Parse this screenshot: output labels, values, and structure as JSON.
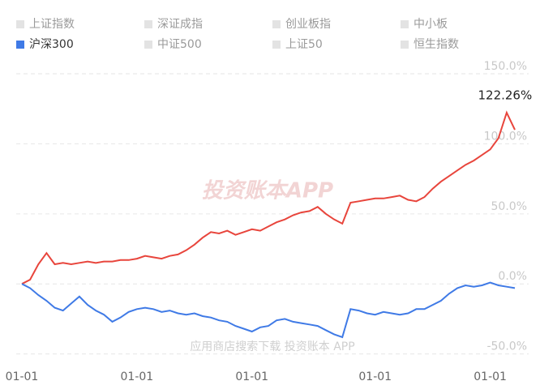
{
  "chart_data": {
    "type": "line",
    "legend": [
      {
        "name": "上证指数",
        "color": "#e3e3e3"
      },
      {
        "name": "深证成指",
        "color": "#e3e3e3"
      },
      {
        "name": "创业板指",
        "color": "#e3e3e3"
      },
      {
        "name": "中小板",
        "color": "#e3e3e3"
      },
      {
        "name": "沪深300",
        "color": "#3f7ae6"
      },
      {
        "name": "中证500",
        "color": "#e3e3e3"
      },
      {
        "name": "上证50",
        "color": "#e3e3e3"
      },
      {
        "name": "恒生指数",
        "color": "#e3e3e3"
      }
    ],
    "categories": [
      "01-01",
      null,
      null,
      null,
      null,
      null,
      null,
      null,
      null,
      null,
      null,
      null,
      null,
      null,
      "01-01",
      null,
      null,
      null,
      null,
      null,
      null,
      null,
      null,
      null,
      null,
      null,
      null,
      null,
      "01-01",
      null,
      null,
      null,
      null,
      null,
      null,
      null,
      null,
      null,
      null,
      null,
      null,
      null,
      null,
      "01-01",
      null,
      null,
      null,
      null,
      null,
      null,
      null,
      null,
      null,
      null,
      null,
      null,
      null,
      "01-01",
      null,
      null,
      null
    ],
    "series": [
      {
        "color": "#e8453c",
        "values": [
          0,
          3,
          14,
          22,
          14,
          15,
          14,
          15,
          16,
          15,
          16,
          16,
          17,
          17,
          18,
          20,
          19,
          18,
          20,
          21,
          24,
          28,
          33,
          37,
          36,
          38,
          35,
          37,
          39,
          38,
          41,
          44,
          46,
          49,
          51,
          52,
          55,
          50,
          46,
          43,
          58,
          59,
          60,
          61,
          61,
          62,
          63,
          60,
          59,
          62,
          68,
          73,
          77,
          81,
          85,
          88,
          92,
          96,
          104,
          122.26,
          110
        ],
        "value_labels": [
          null,
          null,
          null,
          null,
          null,
          null,
          null,
          null,
          null,
          null,
          null,
          null,
          null,
          null,
          null,
          null,
          null,
          null,
          null,
          null,
          null,
          null,
          null,
          null,
          null,
          null,
          null,
          null,
          null,
          null,
          null,
          null,
          null,
          null,
          null,
          null,
          null,
          null,
          null,
          null,
          null,
          null,
          null,
          null,
          null,
          null,
          null,
          null,
          null,
          null,
          null,
          null,
          null,
          null,
          null,
          null,
          null,
          null,
          null,
          "122.26%",
          null
        ]
      },
      {
        "name": "沪深300",
        "color": "#3f7ae6",
        "values": [
          0,
          -3,
          -8,
          -12,
          -17,
          -19,
          -14,
          -9,
          -15,
          -19,
          -22,
          -27,
          -24,
          -20,
          -18,
          -17,
          -18,
          -20,
          -19,
          -21,
          -22,
          -21,
          -23,
          -24,
          -26,
          -27,
          -30,
          -32,
          -34,
          -31,
          -30,
          -26,
          -25,
          -27,
          -28,
          -29,
          -30,
          -33,
          -36,
          -38,
          -18,
          -19,
          -21,
          -22,
          -20,
          -21,
          -22,
          -21,
          -18,
          -18,
          -15,
          -12,
          -7,
          -3,
          -1,
          -2,
          -1,
          1,
          -1,
          -2,
          -3
        ]
      }
    ],
    "ylim": [
      -56,
      150
    ],
    "yticks": [
      {
        "value": -50,
        "label": "-50.0%"
      },
      {
        "value": 0,
        "label": "0.0%"
      },
      {
        "value": 50,
        "label": "50.0%"
      },
      {
        "value": 100,
        "label": "100.0%"
      },
      {
        "value": 150,
        "label": "150.0%"
      }
    ],
    "grid": true,
    "watermark": "投资账本APP",
    "footer_watermark": "应用商店搜索下载 投资账本 APP"
  }
}
